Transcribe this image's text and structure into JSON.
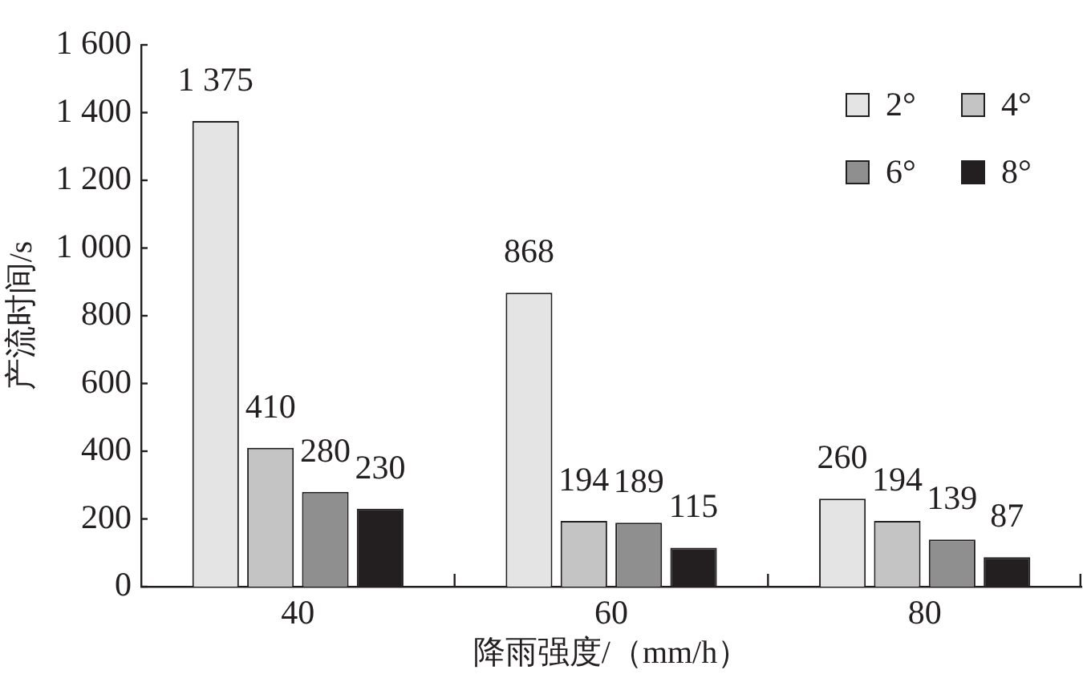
{
  "chart_data": {
    "type": "bar",
    "xlabel": "降雨强度/（mm/h）",
    "ylabel": "产流时间/s",
    "categories": [
      "40",
      "60",
      "80"
    ],
    "series": [
      {
        "name": "2°",
        "color": "#e4e4e4",
        "values": [
          1375,
          868,
          260
        ],
        "value_labels": [
          "1 375",
          "868",
          "260"
        ]
      },
      {
        "name": "4°",
        "color": "#c4c4c4",
        "values": [
          410,
          194,
          194
        ],
        "value_labels": [
          "410",
          "194",
          "194"
        ]
      },
      {
        "name": "6°",
        "color": "#8f8f8f",
        "values": [
          280,
          189,
          139
        ],
        "value_labels": [
          "280",
          "189",
          "139"
        ]
      },
      {
        "name": "8°",
        "color": "#231f20",
        "values": [
          230,
          115,
          87
        ],
        "value_labels": [
          "230",
          "115",
          "87"
        ]
      }
    ],
    "ylim": [
      0,
      1600
    ],
    "yticks": [
      0,
      200,
      400,
      600,
      800,
      {
        "value": 1000,
        "label": "1 000"
      },
      {
        "value": 1200,
        "label": "1 200"
      },
      {
        "value": 1400,
        "label": "1 400"
      },
      {
        "value": 1600,
        "label": "1 600"
      }
    ],
    "legend": "top right"
  }
}
